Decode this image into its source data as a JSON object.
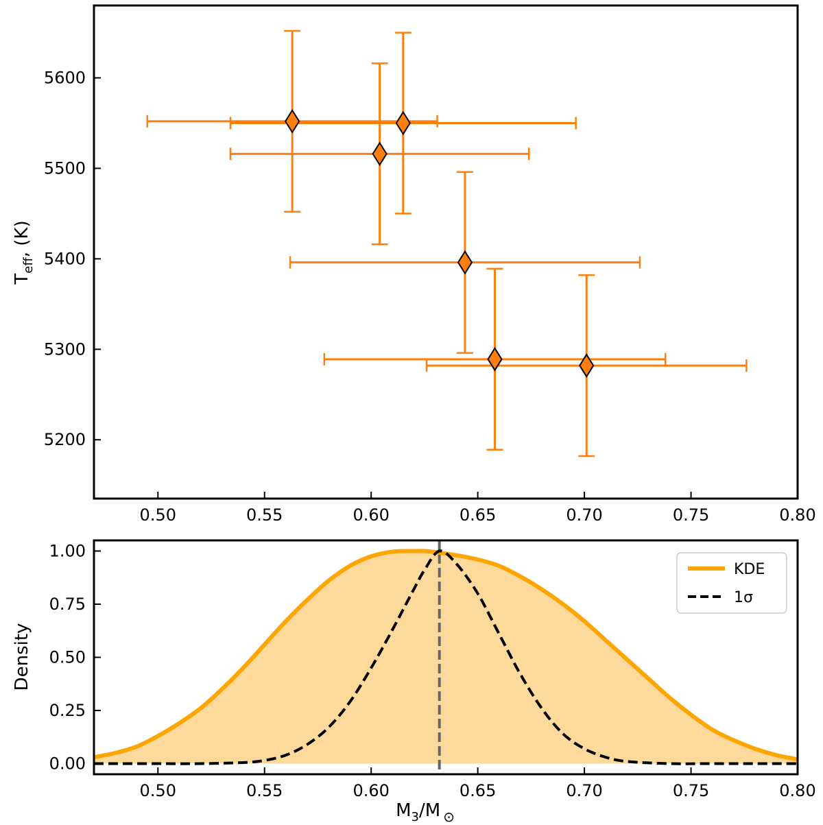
{
  "chart_data": [
    {
      "type": "scatter",
      "panel": "top",
      "xlabel": "",
      "ylabel_main": "T",
      "ylabel_sub": "eff",
      "ylabel_rest": ", (K)",
      "xlim": [
        0.47,
        0.8
      ],
      "ylim": [
        5135,
        5680
      ],
      "xticks": [
        0.5,
        0.55,
        0.6,
        0.65,
        0.7,
        0.75,
        0.8
      ],
      "yticks": [
        5200,
        5300,
        5400,
        5500,
        5600
      ],
      "marker": "diamond",
      "color": "#ff7f0e",
      "points": [
        {
          "x": 0.563,
          "y": 5552,
          "xerr": 0.068,
          "yerr": 100
        },
        {
          "x": 0.615,
          "y": 5550,
          "xerr": 0.081,
          "yerr": 100
        },
        {
          "x": 0.604,
          "y": 5516,
          "xerr": 0.07,
          "yerr": 100
        },
        {
          "x": 0.644,
          "y": 5396,
          "xerr": 0.082,
          "yerr": 100
        },
        {
          "x": 0.658,
          "y": 5289,
          "xerr": 0.08,
          "yerr": 100
        },
        {
          "x": 0.701,
          "y": 5282,
          "xerr": 0.075,
          "yerr": 100
        }
      ]
    },
    {
      "type": "area",
      "panel": "bottom",
      "xlabel_main": "M",
      "xlabel_sub": "3",
      "xlabel_rest": "/M",
      "xlabel_sun": "⊙",
      "ylabel": "Density",
      "xlim": [
        0.47,
        0.8
      ],
      "ylim": [
        -0.05,
        1.05
      ],
      "xticks": [
        0.5,
        0.55,
        0.6,
        0.65,
        0.7,
        0.75,
        0.8
      ],
      "yticks": [
        0.0,
        0.25,
        0.5,
        0.75,
        1.0
      ],
      "vline_x": 0.632,
      "series": [
        {
          "name": "KDE",
          "style": "solid",
          "color": "#ffa500",
          "fill": "#fdd99b",
          "x": [
            0.47,
            0.48,
            0.49,
            0.5,
            0.51,
            0.52,
            0.53,
            0.54,
            0.55,
            0.56,
            0.57,
            0.58,
            0.59,
            0.6,
            0.61,
            0.62,
            0.625,
            0.63,
            0.64,
            0.65,
            0.66,
            0.67,
            0.68,
            0.69,
            0.7,
            0.71,
            0.72,
            0.73,
            0.74,
            0.75,
            0.76,
            0.77,
            0.78,
            0.79,
            0.8
          ],
          "y": [
            0.03,
            0.05,
            0.08,
            0.13,
            0.19,
            0.26,
            0.35,
            0.45,
            0.56,
            0.67,
            0.77,
            0.86,
            0.93,
            0.975,
            0.997,
            1.0,
            1.0,
            0.995,
            0.98,
            0.96,
            0.93,
            0.88,
            0.82,
            0.75,
            0.67,
            0.58,
            0.49,
            0.4,
            0.31,
            0.23,
            0.16,
            0.11,
            0.07,
            0.04,
            0.02
          ]
        },
        {
          "name": "1σ",
          "style": "dashed",
          "color": "#000000",
          "x": [
            0.47,
            0.5,
            0.52,
            0.54,
            0.55,
            0.56,
            0.57,
            0.58,
            0.59,
            0.6,
            0.61,
            0.62,
            0.625,
            0.632,
            0.64,
            0.65,
            0.66,
            0.67,
            0.68,
            0.69,
            0.7,
            0.71,
            0.72,
            0.74,
            0.76,
            0.8
          ],
          "y": [
            0.0,
            0.0,
            0.0,
            0.005,
            0.015,
            0.04,
            0.09,
            0.17,
            0.29,
            0.45,
            0.63,
            0.82,
            0.91,
            1.0,
            0.94,
            0.8,
            0.61,
            0.42,
            0.26,
            0.14,
            0.07,
            0.03,
            0.01,
            0.0,
            0.0,
            0.0
          ]
        }
      ]
    }
  ]
}
